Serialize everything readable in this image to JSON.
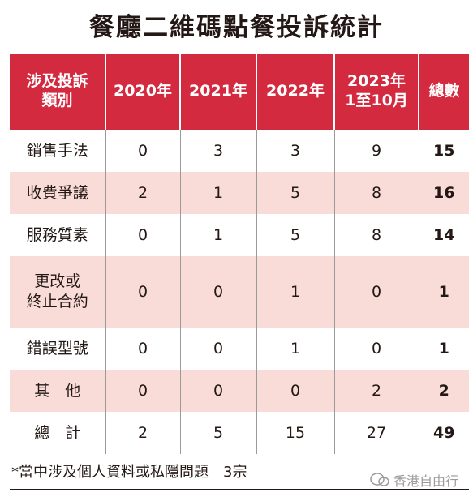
{
  "title": "餐廳二維碼點餐投訴統計",
  "table": {
    "header": [
      "涉及投訴\n類別",
      "2020年",
      "2021年",
      "2022年",
      "2023年\n1至10月",
      "總數"
    ],
    "rows": [
      [
        "銷售手法",
        0,
        3,
        3,
        9,
        15
      ],
      [
        "收費爭議",
        2,
        1,
        5,
        8,
        16
      ],
      [
        "服務質素",
        0,
        1,
        5,
        8,
        14
      ],
      [
        "更改或\n終止合約",
        0,
        0,
        1,
        0,
        1
      ],
      [
        "錯誤型號",
        0,
        0,
        1,
        0,
        1
      ],
      [
        "其　他",
        0,
        0,
        0,
        2,
        2
      ],
      [
        "總　計",
        2,
        5,
        15,
        27,
        49
      ]
    ]
  },
  "footnote": "*當中涉及個人資料或私隱問題　3宗",
  "watermark": "香港自由行"
}
